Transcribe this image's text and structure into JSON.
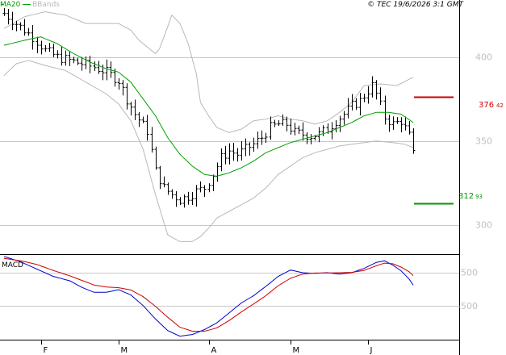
{
  "header": {
    "ma_label": "MA20",
    "bb_label": "BBands",
    "copyright": "© TEC 19/6/2026 3:1 GMT"
  },
  "colors": {
    "ma": "#00a000",
    "bbands": "#b8b8b8",
    "price": "#000000",
    "macd": "#0000cc",
    "signal": "#cc0000",
    "resistance": "#cc0000",
    "support": "#009900",
    "grid": "#c8c8c8"
  },
  "levels": {
    "resistance": {
      "value": 376.42,
      "int": "376",
      "dec": "42"
    },
    "support": {
      "value": 312.93,
      "int": "312",
      "dec": "93"
    }
  },
  "chart_data": [
    {
      "type": "line",
      "title": "",
      "ylim": [
        283,
        434
      ],
      "y_ticks": [
        {
          "value": 400,
          "label": "400"
        },
        {
          "value": 350,
          "label": "350"
        },
        {
          "value": 300,
          "label": "300"
        }
      ],
      "x_labels": [
        {
          "label": "F",
          "index": 9
        },
        {
          "label": "M",
          "index": 28
        },
        {
          "label": "A",
          "index": 50
        },
        {
          "label": "M",
          "index": 70
        },
        {
          "label": "J",
          "index": 89
        }
      ],
      "n_bars": 101,
      "close_anchors": [
        [
          0,
          426
        ],
        [
          4,
          418
        ],
        [
          7,
          412
        ],
        [
          10,
          404
        ],
        [
          13,
          400
        ],
        [
          16,
          398
        ],
        [
          19,
          396
        ],
        [
          22,
          394
        ],
        [
          25,
          391
        ],
        [
          28,
          386
        ],
        [
          30,
          375
        ],
        [
          32,
          366
        ],
        [
          35,
          356
        ],
        [
          37,
          332
        ],
        [
          39,
          322
        ],
        [
          41,
          318
        ],
        [
          43,
          315
        ],
        [
          45,
          317
        ],
        [
          47,
          320
        ],
        [
          49,
          322
        ],
        [
          51,
          330
        ],
        [
          53,
          340
        ],
        [
          55,
          344
        ],
        [
          57,
          342
        ],
        [
          59,
          345
        ],
        [
          61,
          348
        ],
        [
          63,
          352
        ],
        [
          65,
          358
        ],
        [
          67,
          360
        ],
        [
          69,
          360
        ],
        [
          71,
          355
        ],
        [
          73,
          354
        ],
        [
          75,
          353
        ],
        [
          77,
          354
        ],
        [
          79,
          357
        ],
        [
          81,
          362
        ],
        [
          83,
          366
        ],
        [
          85,
          371
        ],
        [
          87,
          374
        ],
        [
          89,
          380
        ],
        [
          90,
          383
        ],
        [
          91,
          378
        ],
        [
          93,
          364
        ],
        [
          95,
          360
        ],
        [
          97,
          362
        ],
        [
          99,
          353
        ],
        [
          100,
          342
        ]
      ],
      "ma20_anchors": [
        [
          0,
          407
        ],
        [
          5,
          410
        ],
        [
          9,
          412
        ],
        [
          13,
          408
        ],
        [
          17,
          402
        ],
        [
          21,
          397
        ],
        [
          25,
          393
        ],
        [
          28,
          391
        ],
        [
          31,
          385
        ],
        [
          34,
          375
        ],
        [
          37,
          365
        ],
        [
          40,
          352
        ],
        [
          43,
          342
        ],
        [
          46,
          335
        ],
        [
          49,
          330
        ],
        [
          52,
          329
        ],
        [
          55,
          331
        ],
        [
          58,
          334
        ],
        [
          61,
          338
        ],
        [
          64,
          343
        ],
        [
          67,
          346
        ],
        [
          70,
          349
        ],
        [
          73,
          351
        ],
        [
          76,
          353
        ],
        [
          79,
          355
        ],
        [
          82,
          358
        ],
        [
          85,
          361
        ],
        [
          88,
          365
        ],
        [
          91,
          367
        ],
        [
          94,
          367
        ],
        [
          97,
          366
        ],
        [
          100,
          361
        ]
      ],
      "bb_upper_anchors": [
        [
          0,
          417
        ],
        [
          5,
          424
        ],
        [
          10,
          427
        ],
        [
          15,
          425
        ],
        [
          20,
          420
        ],
        [
          25,
          420
        ],
        [
          28,
          420
        ],
        [
          31,
          416
        ],
        [
          33,
          410
        ],
        [
          35,
          406
        ],
        [
          37,
          402
        ],
        [
          38,
          405
        ],
        [
          40,
          418
        ],
        [
          41,
          425
        ],
        [
          43,
          420
        ],
        [
          45,
          408
        ],
        [
          47,
          390
        ],
        [
          48,
          373
        ],
        [
          50,
          365
        ],
        [
          52,
          358
        ],
        [
          55,
          355
        ],
        [
          58,
          357
        ],
        [
          61,
          362
        ],
        [
          64,
          363
        ],
        [
          67,
          365
        ],
        [
          70,
          363
        ],
        [
          73,
          362
        ],
        [
          76,
          360
        ],
        [
          79,
          362
        ],
        [
          82,
          367
        ],
        [
          85,
          373
        ],
        [
          88,
          383
        ],
        [
          92,
          384
        ],
        [
          96,
          383
        ],
        [
          100,
          388
        ]
      ],
      "bb_lower_anchors": [
        [
          0,
          389
        ],
        [
          3,
          396
        ],
        [
          6,
          398
        ],
        [
          10,
          395
        ],
        [
          15,
          392
        ],
        [
          20,
          385
        ],
        [
          25,
          378
        ],
        [
          28,
          372
        ],
        [
          31,
          362
        ],
        [
          34,
          345
        ],
        [
          37,
          318
        ],
        [
          40,
          294
        ],
        [
          43,
          290
        ],
        [
          46,
          290
        ],
        [
          48,
          293
        ],
        [
          50,
          298
        ],
        [
          52,
          304
        ],
        [
          55,
          308
        ],
        [
          58,
          312
        ],
        [
          61,
          316
        ],
        [
          64,
          322
        ],
        [
          67,
          330
        ],
        [
          70,
          335
        ],
        [
          73,
          340
        ],
        [
          76,
          343
        ],
        [
          79,
          345
        ],
        [
          82,
          347
        ],
        [
          85,
          348
        ],
        [
          88,
          349
        ],
        [
          91,
          350
        ],
        [
          95,
          349
        ],
        [
          98,
          348
        ],
        [
          100,
          346
        ]
      ]
    },
    {
      "type": "line",
      "title": "MACD",
      "ylim": [
        -1500,
        1000
      ],
      "y_ticks": [
        {
          "value": 500,
          "label": "500"
        },
        {
          "value": -500,
          "label": "-500"
        }
      ],
      "series": [
        {
          "key": "macd",
          "anchors": [
            [
              0,
              980
            ],
            [
              4,
              820
            ],
            [
              8,
              600
            ],
            [
              12,
              380
            ],
            [
              16,
              250
            ],
            [
              19,
              50
            ],
            [
              22,
              -100
            ],
            [
              25,
              -100
            ],
            [
              28,
              -20
            ],
            [
              31,
              -180
            ],
            [
              34,
              -500
            ],
            [
              37,
              -900
            ],
            [
              40,
              -1250
            ],
            [
              43,
              -1420
            ],
            [
              46,
              -1370
            ],
            [
              49,
              -1220
            ],
            [
              52,
              -1020
            ],
            [
              55,
              -720
            ],
            [
              58,
              -420
            ],
            [
              61,
              -200
            ],
            [
              64,
              80
            ],
            [
              67,
              380
            ],
            [
              70,
              570
            ],
            [
              73,
              490
            ],
            [
              76,
              470
            ],
            [
              79,
              490
            ],
            [
              82,
              450
            ],
            [
              85,
              490
            ],
            [
              88,
              620
            ],
            [
              91,
              800
            ],
            [
              93,
              850
            ],
            [
              95,
              720
            ],
            [
              97,
              550
            ],
            [
              99,
              300
            ],
            [
              100,
              120
            ]
          ]
        },
        {
          "key": "signal",
          "anchors": [
            [
              0,
              920
            ],
            [
              4,
              850
            ],
            [
              8,
              740
            ],
            [
              12,
              560
            ],
            [
              16,
              400
            ],
            [
              19,
              260
            ],
            [
              22,
              120
            ],
            [
              25,
              60
            ],
            [
              28,
              40
            ],
            [
              31,
              -30
            ],
            [
              34,
              -230
            ],
            [
              37,
              -520
            ],
            [
              40,
              -850
            ],
            [
              43,
              -1150
            ],
            [
              46,
              -1270
            ],
            [
              49,
              -1270
            ],
            [
              52,
              -1170
            ],
            [
              55,
              -950
            ],
            [
              58,
              -690
            ],
            [
              61,
              -450
            ],
            [
              64,
              -200
            ],
            [
              67,
              100
            ],
            [
              70,
              320
            ],
            [
              73,
              450
            ],
            [
              76,
              480
            ],
            [
              79,
              480
            ],
            [
              82,
              490
            ],
            [
              85,
              500
            ],
            [
              88,
              560
            ],
            [
              91,
              700
            ],
            [
              93,
              780
            ],
            [
              95,
              760
            ],
            [
              97,
              660
            ],
            [
              99,
              520
            ],
            [
              100,
              400
            ]
          ]
        }
      ]
    }
  ]
}
